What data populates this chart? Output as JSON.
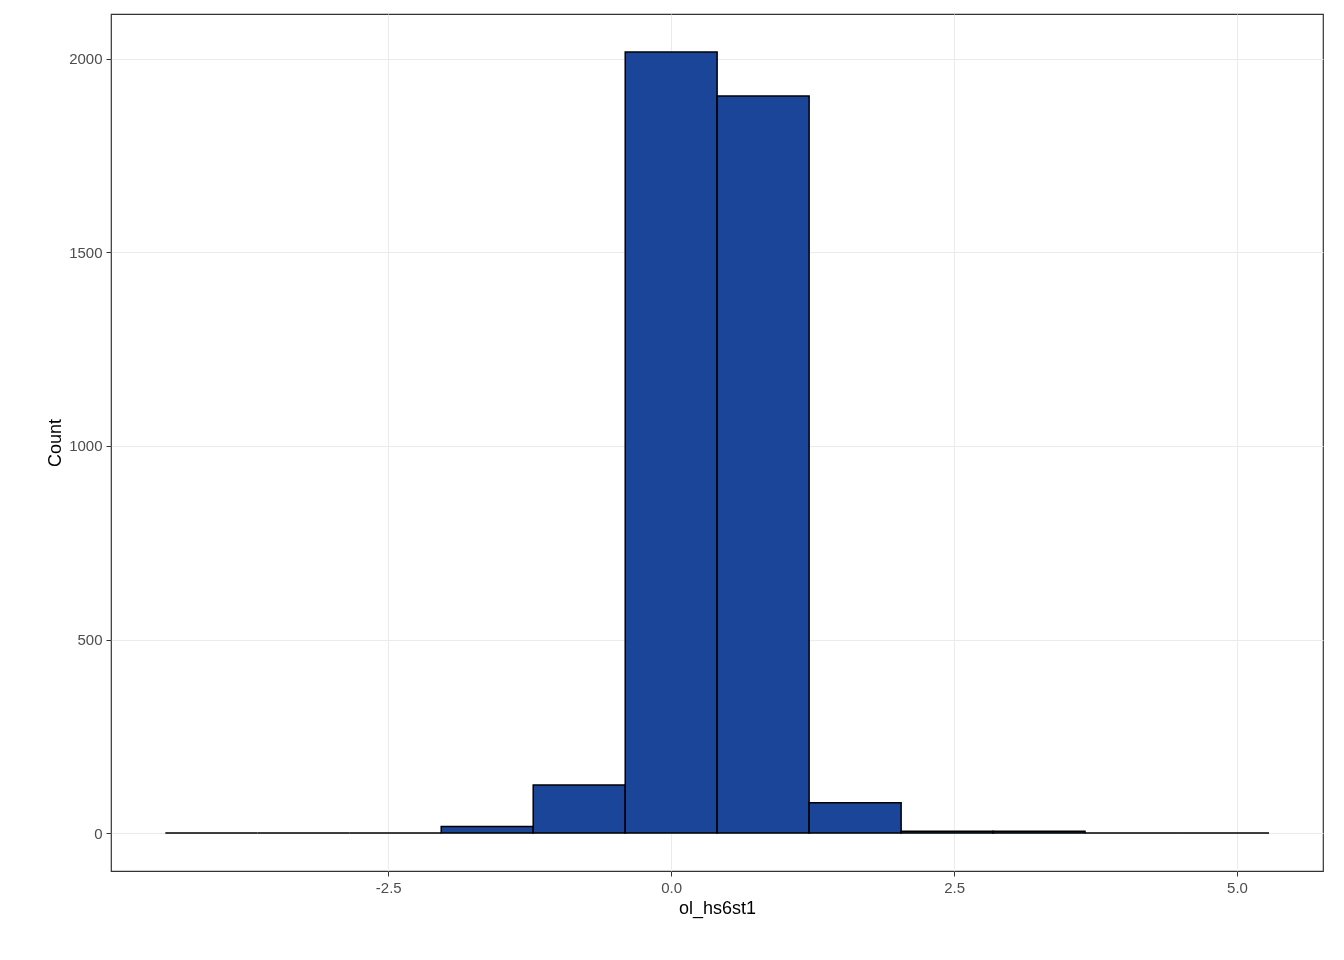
{
  "chart_data": {
    "type": "histogram",
    "xlabel": "ol_hs6st1",
    "ylabel": "Count",
    "bins": [
      -4.47,
      -3.657,
      -2.845,
      -2.032,
      -1.219,
      -0.406,
      0.406,
      1.219,
      2.032,
      2.845,
      3.657,
      4.47,
      5.283
    ],
    "values": [
      0,
      0,
      0,
      17,
      124,
      2018,
      1904,
      78,
      5,
      5,
      0,
      0
    ],
    "colors": [
      "#000000",
      "#000000",
      "#000000",
      "#1a4599",
      "#1a4599",
      "#1a4599",
      "#1a4599",
      "#1a4599",
      "#1a4599",
      "#1a4599",
      "#000000",
      "#000000"
    ],
    "xlim": [
      -4.95,
      5.76
    ],
    "ylim": [
      -98,
      2116
    ],
    "xticks": [
      {
        "value": -2.5,
        "label": "-2.5"
      },
      {
        "value": 0,
        "label": "0.0"
      },
      {
        "value": 2.5,
        "label": "2.5"
      },
      {
        "value": 5,
        "label": "5.0"
      }
    ],
    "yticks": [
      0,
      500,
      1000,
      1500,
      2000
    ],
    "grid": true
  }
}
